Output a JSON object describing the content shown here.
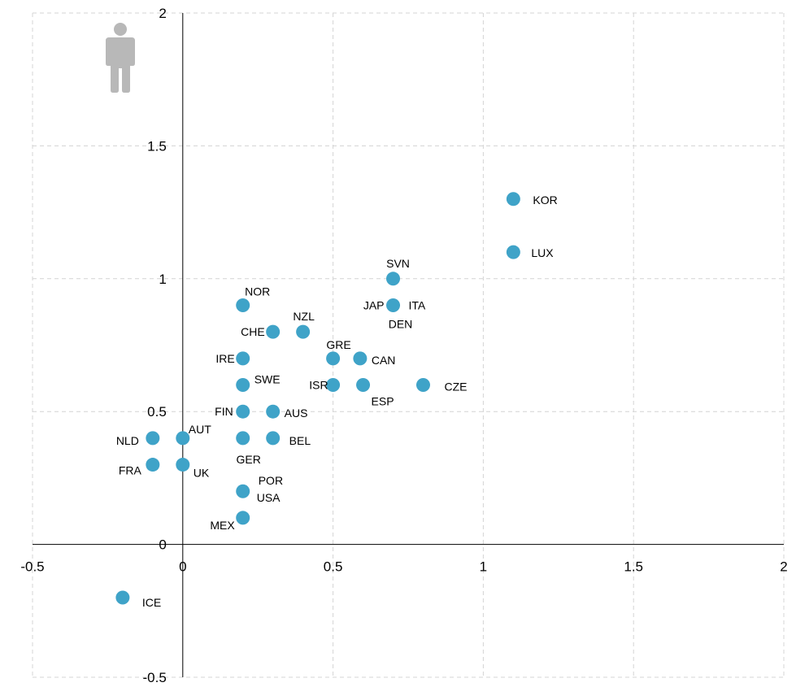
{
  "chart_data": {
    "type": "scatter",
    "title": "",
    "xlabel": "",
    "ylabel": "",
    "xlim": [
      -0.5,
      2
    ],
    "ylim": [
      -0.5,
      2
    ],
    "x_ticks": [
      -0.5,
      0,
      0.5,
      1,
      1.5,
      2
    ],
    "y_ticks": [
      -0.5,
      0,
      0.5,
      1,
      1.5,
      2
    ],
    "x_tick_labels": [
      "-0.5",
      "0",
      "0.5",
      "1",
      "1.5",
      "2"
    ],
    "y_tick_labels": [
      "-0.5",
      "0",
      "0.5",
      "1",
      "1.5",
      "2"
    ],
    "grid": true,
    "marker_color": "#3fa3c8",
    "icon": "person-icon",
    "icon_color": "#b8b8b8",
    "points": [
      {
        "label": "KOR",
        "x": 1.1,
        "y": 1.3
      },
      {
        "label": "LUX",
        "x": 1.1,
        "y": 1.1
      },
      {
        "label": "SVN",
        "x": 0.7,
        "y": 1.0
      },
      {
        "label": "JAP",
        "x": 0.7,
        "y": 0.9
      },
      {
        "label": "ITA",
        "x": 0.7,
        "y": 0.9
      },
      {
        "label": "DEN",
        "x": 0.7,
        "y": 0.9
      },
      {
        "label": "NOR",
        "x": 0.2,
        "y": 0.9
      },
      {
        "label": "CHE",
        "x": 0.3,
        "y": 0.8
      },
      {
        "label": "NZL",
        "x": 0.4,
        "y": 0.8
      },
      {
        "label": "GRE",
        "x": 0.5,
        "y": 0.7
      },
      {
        "label": "CAN",
        "x": 0.59,
        "y": 0.7
      },
      {
        "label": "IRE",
        "x": 0.2,
        "y": 0.7
      },
      {
        "label": "SWE",
        "x": 0.2,
        "y": 0.6
      },
      {
        "label": "ISR",
        "x": 0.5,
        "y": 0.6
      },
      {
        "label": "ESP",
        "x": 0.6,
        "y": 0.6
      },
      {
        "label": "CZE",
        "x": 0.8,
        "y": 0.6
      },
      {
        "label": "FIN",
        "x": 0.2,
        "y": 0.5
      },
      {
        "label": "AUS",
        "x": 0.3,
        "y": 0.5
      },
      {
        "label": "NLD",
        "x": -0.1,
        "y": 0.4
      },
      {
        "label": "AUT",
        "x": 0.0,
        "y": 0.4
      },
      {
        "label": "GER",
        "x": 0.2,
        "y": 0.4
      },
      {
        "label": "BEL",
        "x": 0.3,
        "y": 0.4
      },
      {
        "label": "FRA",
        "x": -0.1,
        "y": 0.3
      },
      {
        "label": "UK",
        "x": 0.0,
        "y": 0.3
      },
      {
        "label": "POR",
        "x": 0.2,
        "y": 0.2
      },
      {
        "label": "USA",
        "x": 0.2,
        "y": 0.2
      },
      {
        "label": "MEX",
        "x": 0.2,
        "y": 0.1
      },
      {
        "label": "ICE",
        "x": -0.2,
        "y": -0.2
      }
    ]
  }
}
